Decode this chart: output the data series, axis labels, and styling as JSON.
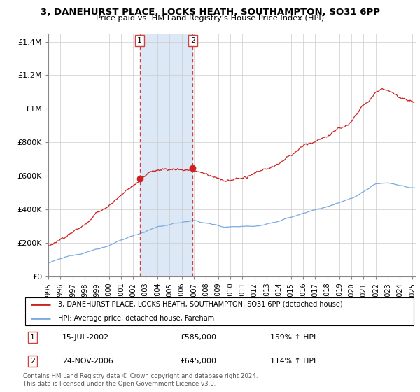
{
  "title": "3, DANEHURST PLACE, LOCKS HEATH, SOUTHAMPTON, SO31 6PP",
  "subtitle": "Price paid vs. HM Land Registry's House Price Index (HPI)",
  "legend_line1": "3, DANEHURST PLACE, LOCKS HEATH, SOUTHAMPTON, SO31 6PP (detached house)",
  "legend_line2": "HPI: Average price, detached house, Fareham",
  "marker1_date": "15-JUL-2002",
  "marker1_price": "£585,000",
  "marker1_hpi": "159% ↑ HPI",
  "marker2_date": "24-NOV-2006",
  "marker2_price": "£645,000",
  "marker2_hpi": "114% ↑ HPI",
  "sale1_x": 2002.54,
  "sale1_y": 585000,
  "sale2_x": 2006.9,
  "sale2_y": 645000,
  "vline1_x": 2002.54,
  "vline2_x": 2006.9,
  "shade_color": "#dce8f5",
  "vline_color": "#d04040",
  "hpi_line_color": "#7aaadd",
  "price_line_color": "#cc2222",
  "footer": "Contains HM Land Registry data © Crown copyright and database right 2024.\nThis data is licensed under the Open Government Licence v3.0.",
  "ylim": [
    0,
    1450000
  ],
  "xlim_start": 1995,
  "xlim_end": 2025.3,
  "yticks": [
    0,
    200000,
    400000,
    600000,
    800000,
    1000000,
    1200000,
    1400000
  ],
  "ytick_labels": [
    "£0",
    "£200K",
    "£400K",
    "£600K",
    "£800K",
    "£1M",
    "£1.2M",
    "£1.4M"
  ]
}
